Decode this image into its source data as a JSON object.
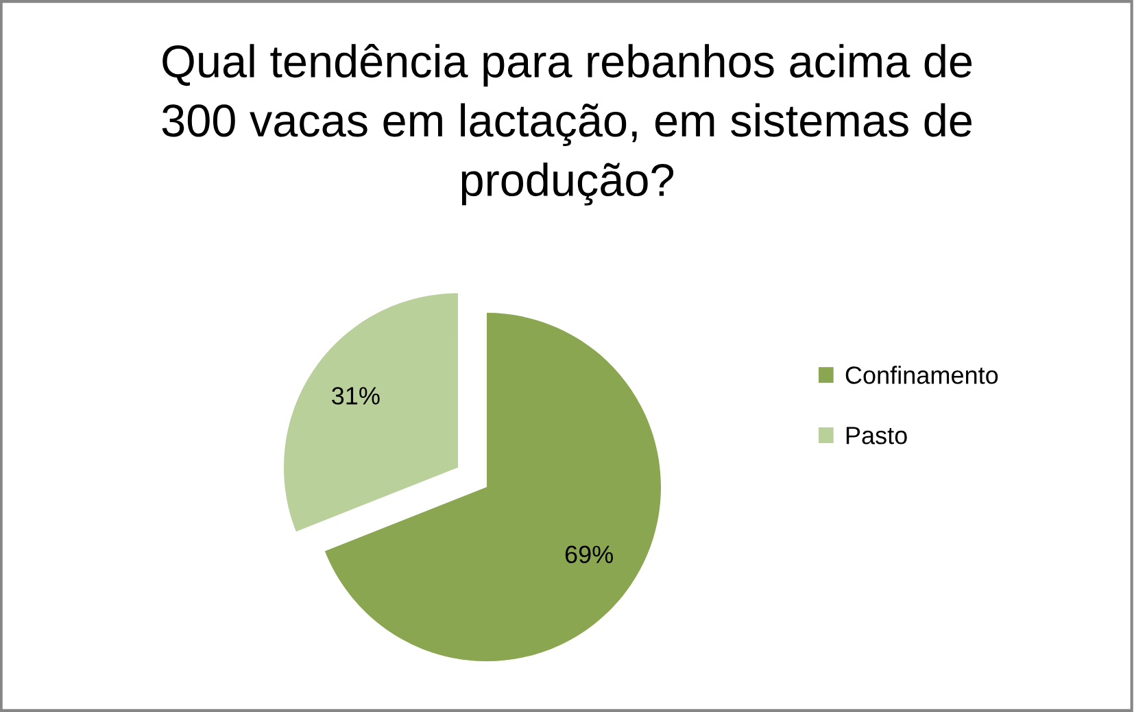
{
  "chart_data": {
    "type": "pie",
    "title": "Qual tendência para rebanhos acima de\n300 vacas em lactação, em sistemas de\nprodução?",
    "categories": [
      "Confinamento",
      "Pasto"
    ],
    "values": [
      69,
      31
    ],
    "colors": [
      "#8aa650",
      "#bad09a"
    ],
    "value_labels": [
      "69%",
      "31%"
    ],
    "legend": "right"
  }
}
